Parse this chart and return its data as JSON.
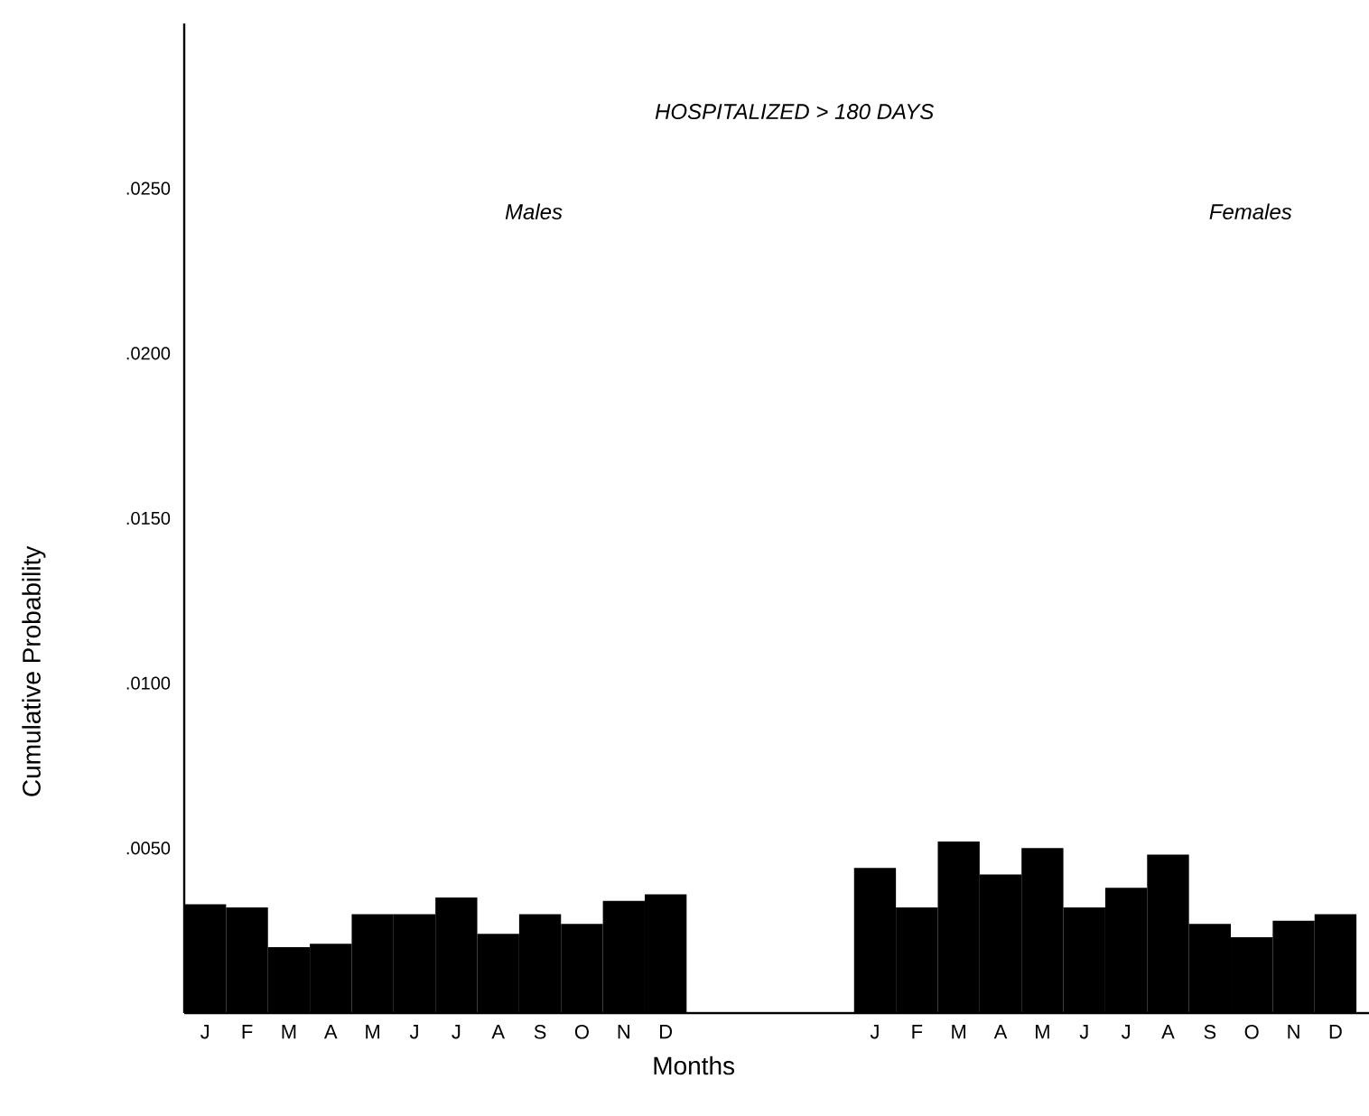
{
  "chart_data": {
    "type": "bar",
    "title": "HOSPITALIZED > 180 DAYS",
    "ylabel": "Cumulative Probability",
    "xlabel": "Months",
    "categories": [
      "J",
      "F",
      "M",
      "A",
      "M",
      "J",
      "J",
      "A",
      "S",
      "O",
      "N",
      "D",
      null,
      null,
      null,
      null,
      "J",
      "F",
      "M",
      "A",
      "M",
      "J",
      "J",
      "A",
      "S",
      "O",
      "N",
      "D"
    ],
    "series": [
      {
        "color": "#000000",
        "values": [
          0.0033,
          0.0032,
          0.002,
          0.0021,
          0.003,
          0.003,
          0.0035,
          0.0024,
          0.003,
          0.0027,
          0.0034,
          0.0036,
          null,
          null,
          null,
          null,
          null,
          null,
          null,
          null,
          null,
          null,
          null,
          null,
          null,
          null,
          null,
          null
        ]
      },
      {
        "color": "#000000",
        "values": [
          null,
          null,
          null,
          null,
          null,
          null,
          null,
          null,
          null,
          null,
          null,
          null,
          null,
          null,
          null,
          null,
          0.0044,
          0.0032,
          0.0052,
          0.0042,
          0.005,
          0.0032,
          0.0038,
          0.0048,
          0.0027,
          0.0023,
          0.0028,
          0.003
        ]
      }
    ],
    "annotations": [
      "Males",
      "Females"
    ],
    "ylim": [
      0,
      0.03
    ],
    "yticks": [
      {
        "value": 0.005,
        "label": ".0050"
      },
      {
        "value": 0.01,
        "label": ".0100"
      },
      {
        "value": 0.015,
        "label": ".0150"
      },
      {
        "value": 0.02,
        "label": ".0200"
      },
      {
        "value": 0.025,
        "label": ".0250"
      }
    ]
  }
}
